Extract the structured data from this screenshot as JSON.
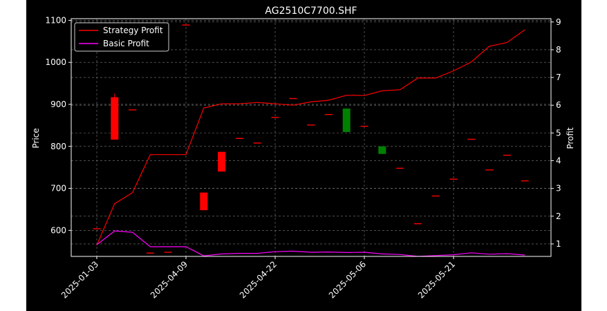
{
  "chart_data": {
    "type": "candlestick_with_lines",
    "title": "AG2510C7700.SHF",
    "ylabel_left": "Price",
    "ylabel_right": "Profit",
    "xlabel": "",
    "grid": true,
    "legend_position": "top-left",
    "y_left": {
      "min": 538,
      "max": 1104,
      "ticks": [
        600,
        700,
        800,
        900,
        1000,
        1100
      ]
    },
    "y_right": {
      "min": 0.55,
      "max": 9.12,
      "ticks": [
        1,
        2,
        3,
        4,
        5,
        6,
        7,
        8,
        9
      ]
    },
    "x_ticks": [
      {
        "index": 0,
        "label": "2025-01-03"
      },
      {
        "index": 5,
        "label": "2025-04-09"
      },
      {
        "index": 10,
        "label": "2025-04-22"
      },
      {
        "index": 15,
        "label": "2025-05-06"
      },
      {
        "index": 20,
        "label": "2025-05-21"
      }
    ],
    "candles": [
      {
        "i": 0,
        "open": 605,
        "close": 605,
        "high": 605,
        "low": 605
      },
      {
        "i": 1,
        "open": 917,
        "close": 816,
        "high": 926,
        "low": 816
      },
      {
        "i": 2,
        "open": 888,
        "close": 888,
        "high": 888,
        "low": 888
      },
      {
        "i": 3,
        "open": 547,
        "close": 547,
        "high": 547,
        "low": 547
      },
      {
        "i": 4,
        "open": 549,
        "close": 549,
        "high": 549,
        "low": 549
      },
      {
        "i": 5,
        "open": 1090,
        "close": 1090,
        "high": 1090,
        "low": 1090
      },
      {
        "i": 6,
        "open": 690,
        "close": 648,
        "high": 690,
        "low": 648
      },
      {
        "i": 7,
        "open": 787,
        "close": 740,
        "high": 787,
        "low": 740
      },
      {
        "i": 8,
        "open": 820,
        "close": 820,
        "high": 820,
        "low": 820
      },
      {
        "i": 9,
        "open": 809,
        "close": 809,
        "high": 809,
        "low": 809
      },
      {
        "i": 10,
        "open": 870,
        "close": 870,
        "high": 870,
        "low": 870
      },
      {
        "i": 11,
        "open": 915,
        "close": 915,
        "high": 915,
        "low": 915
      },
      {
        "i": 12,
        "open": 852,
        "close": 852,
        "high": 852,
        "low": 852
      },
      {
        "i": 13,
        "open": 877,
        "close": 877,
        "high": 877,
        "low": 877
      },
      {
        "i": 14,
        "open": 834,
        "close": 890,
        "high": 890,
        "low": 834
      },
      {
        "i": 15,
        "open": 849,
        "close": 849,
        "high": 849,
        "low": 849
      },
      {
        "i": 16,
        "open": 782,
        "close": 800,
        "high": 800,
        "low": 782
      },
      {
        "i": 17,
        "open": 749,
        "close": 749,
        "high": 749,
        "low": 749
      },
      {
        "i": 18,
        "open": 617,
        "close": 617,
        "high": 617,
        "low": 617
      },
      {
        "i": 19,
        "open": 683,
        "close": 683,
        "high": 683,
        "low": 683
      },
      {
        "i": 20,
        "open": 723,
        "close": 723,
        "high": 723,
        "low": 723
      },
      {
        "i": 21,
        "open": 818,
        "close": 818,
        "high": 818,
        "low": 818
      },
      {
        "i": 22,
        "open": 745,
        "close": 745,
        "high": 745,
        "low": 745
      },
      {
        "i": 23,
        "open": 780,
        "close": 780,
        "high": 780,
        "low": 780
      },
      {
        "i": 24,
        "open": 719,
        "close": 719,
        "high": 719,
        "low": 719
      }
    ],
    "series": [
      {
        "name": "Strategy Profit",
        "color": "#ff0000",
        "axis": "right",
        "values": [
          0.95,
          2.45,
          2.85,
          4.22,
          4.22,
          4.22,
          5.9,
          6.05,
          6.05,
          6.1,
          6.05,
          6.0,
          6.12,
          6.18,
          6.36,
          6.35,
          6.52,
          6.56,
          6.98,
          6.98,
          7.24,
          7.56,
          8.12,
          8.26,
          8.72
        ]
      },
      {
        "name": "Basic Profit",
        "color": "#ff00ff",
        "axis": "right",
        "values": [
          0.97,
          1.47,
          1.42,
          0.9,
          0.9,
          0.9,
          0.57,
          0.64,
          0.66,
          0.66,
          0.72,
          0.74,
          0.7,
          0.71,
          0.69,
          0.7,
          0.64,
          0.62,
          0.55,
          0.58,
          0.61,
          0.68,
          0.63,
          0.65,
          0.6
        ]
      }
    ],
    "colors": {
      "background": "#000000",
      "axes": "#ffffff",
      "grid": "#808080",
      "candle_up": "#008000",
      "candle_down": "#ff0000"
    }
  }
}
